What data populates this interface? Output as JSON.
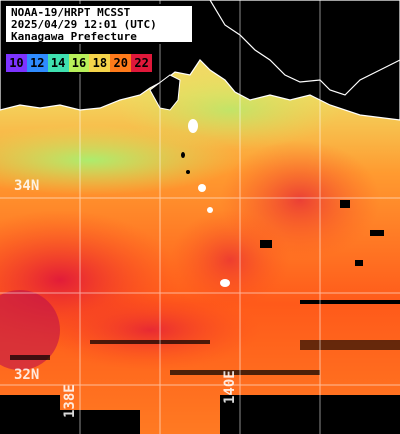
{
  "header": {
    "line1": "NOAA-19/HRPT MCSST",
    "line2": "2025/04/29 12:01 (UTC)",
    "line3": "Kanagawa Prefecture"
  },
  "legend": {
    "items": [
      {
        "label": "10",
        "color": "#7d33ff"
      },
      {
        "label": "12",
        "color": "#2f8bff"
      },
      {
        "label": "14",
        "color": "#3fe0b0"
      },
      {
        "label": "16",
        "color": "#b8f05a"
      },
      {
        "label": "18",
        "color": "#f5d44a"
      },
      {
        "label": "20",
        "color": "#ff7a1a"
      },
      {
        "label": "22",
        "color": "#e0183a"
      }
    ]
  },
  "grid": {
    "lat_labels": [
      "34N",
      "32N"
    ],
    "lon_labels": [
      "138E",
      "140E"
    ]
  },
  "colors": {
    "land": "#000000",
    "coast": "#ffffff",
    "grid": "#ffffff",
    "cool": "#b8f05a",
    "warm": "#ff7a1a",
    "hot": "#e0183a"
  }
}
